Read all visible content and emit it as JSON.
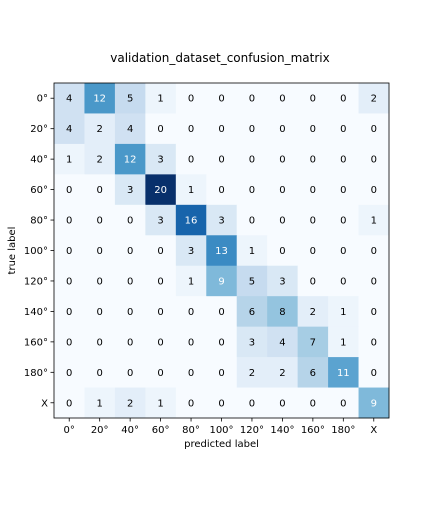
{
  "chart_data": {
    "type": "heatmap",
    "title": "validation_dataset_confusion_matrix",
    "xlabel": "predicted label",
    "ylabel": "true label",
    "x_categories": [
      "0°",
      "20°",
      "40°",
      "60°",
      "80°",
      "100°",
      "120°",
      "140°",
      "160°",
      "180°",
      "X"
    ],
    "y_categories": [
      "0°",
      "20°",
      "40°",
      "60°",
      "80°",
      "100°",
      "120°",
      "140°",
      "160°",
      "180°",
      "X"
    ],
    "matrix": [
      [
        4,
        12,
        5,
        1,
        0,
        0,
        0,
        0,
        0,
        0,
        2
      ],
      [
        4,
        2,
        4,
        0,
        0,
        0,
        0,
        0,
        0,
        0,
        0
      ],
      [
        1,
        2,
        12,
        3,
        0,
        0,
        0,
        0,
        0,
        0,
        0
      ],
      [
        0,
        0,
        3,
        20,
        1,
        0,
        0,
        0,
        0,
        0,
        0
      ],
      [
        0,
        0,
        0,
        3,
        16,
        3,
        0,
        0,
        0,
        0,
        1
      ],
      [
        0,
        0,
        0,
        0,
        3,
        13,
        1,
        0,
        0,
        0,
        0
      ],
      [
        0,
        0,
        0,
        0,
        1,
        9,
        5,
        3,
        0,
        0,
        0
      ],
      [
        0,
        0,
        0,
        0,
        0,
        0,
        6,
        8,
        2,
        1,
        0
      ],
      [
        0,
        0,
        0,
        0,
        0,
        0,
        3,
        4,
        7,
        1,
        0
      ],
      [
        0,
        0,
        0,
        0,
        0,
        0,
        2,
        2,
        6,
        11,
        0
      ],
      [
        0,
        1,
        2,
        1,
        0,
        0,
        0,
        0,
        0,
        0,
        9
      ]
    ],
    "value_range": [
      0,
      20
    ],
    "colormap": "Blues",
    "grid": false,
    "legend": "none"
  }
}
